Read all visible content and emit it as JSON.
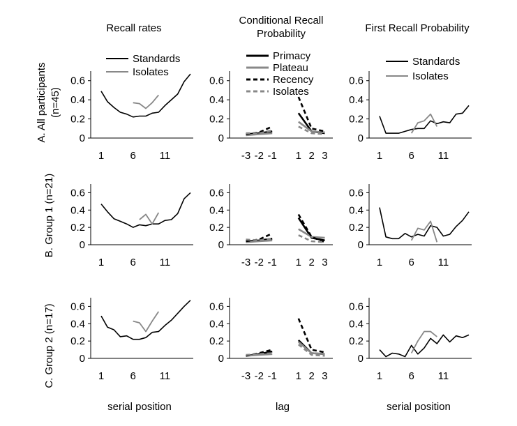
{
  "column_titles": [
    "Recall rates",
    "Conditional Recall\nProbability",
    "First Recall Probability"
  ],
  "row_labels": [
    "A. All participants (n=45)",
    "B. Group 1 (n=21)",
    "C. Group 2 (n=17)"
  ],
  "x_axis_labels": [
    "serial position",
    "lag",
    "serial position"
  ],
  "chart_data": [
    {
      "type": "line",
      "panel": "A-recall",
      "title": "Recall rates",
      "ylim": [
        0,
        0.7
      ],
      "yticks": [
        0,
        0.2,
        0.4,
        0.6
      ],
      "ytick_labels": [
        "0",
        "0.2",
        "0.4",
        "0.6"
      ],
      "xlim": [
        1,
        15
      ],
      "xticks": [
        1,
        6,
        11
      ],
      "xtick_labels": [
        "1",
        "6",
        "11"
      ],
      "legend": [
        "Standards",
        "Isolates"
      ],
      "series": [
        {
          "name": "Standards",
          "color": "#000000",
          "dash": "",
          "x": [
            1,
            2,
            3,
            4,
            5,
            6,
            7,
            8,
            9,
            10,
            11,
            12,
            13,
            14,
            15
          ],
          "y": [
            0.49,
            0.38,
            0.32,
            0.27,
            0.25,
            0.22,
            0.23,
            0.23,
            0.26,
            0.27,
            0.34,
            0.4,
            0.46,
            0.59,
            0.67
          ]
        },
        {
          "name": "Isolates",
          "color": "#888888",
          "dash": "",
          "x": [
            6,
            7,
            8,
            9,
            10
          ],
          "y": [
            0.37,
            0.36,
            0.31,
            0.37,
            0.45
          ]
        }
      ]
    },
    {
      "type": "line",
      "panel": "A-crp",
      "title": "Conditional Recall Probability",
      "ylim": [
        0,
        0.7
      ],
      "yticks": [
        0,
        0.2,
        0.4,
        0.6
      ],
      "ytick_labels": [
        "0",
        "0.2",
        "0.4",
        "0.6"
      ],
      "xlim": [
        -3.4,
        3.4
      ],
      "xticks": [
        -3,
        -2,
        -1,
        1,
        2,
        3
      ],
      "xtick_labels": [
        "-3",
        "-2",
        "-1",
        "1",
        "2",
        "3"
      ],
      "legend": [
        "Primacy",
        "Plateau",
        "Recency",
        "Isolates"
      ],
      "series": [
        {
          "name": "Primacy",
          "color": "#000000",
          "dash": "",
          "x": [
            -3,
            -2,
            -1,
            1,
            2,
            3
          ],
          "y": [
            0.04,
            0.05,
            0.07,
            0.26,
            0.07,
            0.05
          ]
        },
        {
          "name": "Plateau",
          "color": "#888888",
          "dash": "",
          "x": [
            -3,
            -2,
            -1,
            1,
            2,
            3
          ],
          "y": [
            0.03,
            0.04,
            0.05,
            0.17,
            0.07,
            0.06
          ]
        },
        {
          "name": "Recency",
          "color": "#000000",
          "dash": "6,4",
          "x": [
            -3,
            -2,
            -1,
            1,
            2,
            3
          ],
          "y": [
            0.04,
            0.06,
            0.12,
            0.43,
            0.1,
            0.07
          ]
        },
        {
          "name": "Isolates",
          "color": "#888888",
          "dash": "6,4",
          "x": [
            -3,
            -2,
            -1,
            1,
            2,
            3
          ],
          "y": [
            0.05,
            0.05,
            0.08,
            0.12,
            0.05,
            0.04
          ]
        }
      ]
    },
    {
      "type": "line",
      "panel": "A-first",
      "title": "First Recall Probability",
      "ylim": [
        0,
        0.7
      ],
      "yticks": [
        0,
        0.2,
        0.4,
        0.6
      ],
      "ytick_labels": [
        "0",
        "0.2",
        "0.4",
        "0.6"
      ],
      "xlim": [
        1,
        15
      ],
      "xticks": [
        1,
        6,
        11
      ],
      "xtick_labels": [
        "1",
        "6",
        "11"
      ],
      "legend": [
        "Standards",
        "Isolates"
      ],
      "series": [
        {
          "name": "Standards",
          "color": "#000000",
          "dash": "",
          "x": [
            1,
            2,
            3,
            4,
            5,
            6,
            7,
            8,
            9,
            10,
            11,
            12,
            13,
            14,
            15
          ],
          "y": [
            0.23,
            0.05,
            0.05,
            0.05,
            0.07,
            0.09,
            0.1,
            0.1,
            0.18,
            0.15,
            0.17,
            0.16,
            0.25,
            0.26,
            0.34
          ]
        },
        {
          "name": "Isolates",
          "color": "#888888",
          "dash": "",
          "x": [
            6,
            7,
            8,
            9,
            10
          ],
          "y": [
            0.05,
            0.16,
            0.18,
            0.25,
            0.12
          ]
        }
      ]
    },
    {
      "type": "line",
      "panel": "B-recall",
      "ylim": [
        0,
        0.7
      ],
      "yticks": [
        0,
        0.2,
        0.4,
        0.6
      ],
      "ytick_labels": [
        "0",
        "0.2",
        "0.4",
        "0.6"
      ],
      "xlim": [
        1,
        15
      ],
      "xticks": [
        1,
        6,
        11
      ],
      "xtick_labels": [
        "1",
        "6",
        "11"
      ],
      "series": [
        {
          "name": "Standards",
          "color": "#000000",
          "dash": "",
          "x": [
            1,
            2,
            3,
            4,
            5,
            6,
            7,
            8,
            9,
            10,
            11,
            12,
            13,
            14,
            15
          ],
          "y": [
            0.47,
            0.38,
            0.3,
            0.27,
            0.24,
            0.2,
            0.23,
            0.22,
            0.24,
            0.24,
            0.28,
            0.29,
            0.36,
            0.53,
            0.6
          ]
        },
        {
          "name": "Isolates",
          "color": "#888888",
          "dash": "",
          "x": [
            7,
            8,
            9,
            10
          ],
          "y": [
            0.29,
            0.35,
            0.24,
            0.37
          ]
        }
      ]
    },
    {
      "type": "line",
      "panel": "B-crp",
      "ylim": [
        0,
        0.7
      ],
      "yticks": [
        0,
        0.2,
        0.4,
        0.6
      ],
      "ytick_labels": [
        "0",
        "0.2",
        "0.4",
        "0.6"
      ],
      "xlim": [
        -3.4,
        3.4
      ],
      "xticks": [
        -3,
        -2,
        -1,
        1,
        2,
        3
      ],
      "xtick_labels": [
        "-3",
        "-2",
        "-1",
        "1",
        "2",
        "3"
      ],
      "series": [
        {
          "name": "Primacy",
          "color": "#000000",
          "dash": "",
          "x": [
            -3,
            -2,
            -1,
            1,
            2,
            3
          ],
          "y": [
            0.04,
            0.05,
            0.07,
            0.31,
            0.08,
            0.05
          ]
        },
        {
          "name": "Plateau",
          "color": "#888888",
          "dash": "",
          "x": [
            -3,
            -2,
            -1,
            1,
            2,
            3
          ],
          "y": [
            0.03,
            0.04,
            0.05,
            0.18,
            0.09,
            0.08
          ]
        },
        {
          "name": "Recency",
          "color": "#000000",
          "dash": "6,4",
          "x": [
            -3,
            -2,
            -1,
            1,
            2,
            3
          ],
          "y": [
            0.04,
            0.06,
            0.13,
            0.35,
            0.09,
            0.03
          ]
        },
        {
          "name": "Isolates",
          "color": "#888888",
          "dash": "6,4",
          "x": [
            -3,
            -2,
            -1,
            1,
            2,
            3
          ],
          "y": [
            0.06,
            0.05,
            0.07,
            0.11,
            0.04,
            0.03
          ]
        }
      ]
    },
    {
      "type": "line",
      "panel": "B-first",
      "ylim": [
        0,
        0.7
      ],
      "yticks": [
        0,
        0.2,
        0.4,
        0.6
      ],
      "ytick_labels": [
        "0",
        "0.2",
        "0.4",
        "0.6"
      ],
      "xlim": [
        1,
        15
      ],
      "xticks": [
        1,
        6,
        11
      ],
      "xtick_labels": [
        "1",
        "6",
        "11"
      ],
      "series": [
        {
          "name": "Standards",
          "color": "#000000",
          "dash": "",
          "x": [
            1,
            2,
            3,
            4,
            5,
            6,
            7,
            8,
            9,
            10,
            11,
            12,
            13,
            14,
            15
          ],
          "y": [
            0.43,
            0.09,
            0.07,
            0.07,
            0.13,
            0.09,
            0.12,
            0.1,
            0.22,
            0.2,
            0.1,
            0.12,
            0.21,
            0.28,
            0.38
          ]
        },
        {
          "name": "Isolates",
          "color": "#888888",
          "dash": "",
          "x": [
            6,
            7,
            8,
            9,
            10
          ],
          "y": [
            0.05,
            0.19,
            0.17,
            0.27,
            0.03
          ]
        }
      ]
    },
    {
      "type": "line",
      "panel": "C-recall",
      "ylim": [
        0,
        0.7
      ],
      "yticks": [
        0,
        0.2,
        0.4,
        0.6
      ],
      "ytick_labels": [
        "0",
        "0.2",
        "0.4",
        "0.6"
      ],
      "xlim": [
        1,
        15
      ],
      "xticks": [
        1,
        6,
        11
      ],
      "xtick_labels": [
        "1",
        "6",
        "11"
      ],
      "series": [
        {
          "name": "Standards",
          "color": "#000000",
          "dash": "",
          "x": [
            1,
            2,
            3,
            4,
            5,
            6,
            7,
            8,
            9,
            10,
            11,
            12,
            13,
            14,
            15
          ],
          "y": [
            0.49,
            0.36,
            0.33,
            0.25,
            0.26,
            0.22,
            0.22,
            0.24,
            0.3,
            0.31,
            0.38,
            0.44,
            0.52,
            0.6,
            0.67
          ]
        },
        {
          "name": "Isolates",
          "color": "#888888",
          "dash": "",
          "x": [
            6,
            7,
            8,
            9,
            10
          ],
          "y": [
            0.43,
            0.41,
            0.31,
            0.43,
            0.54
          ]
        }
      ]
    },
    {
      "type": "line",
      "panel": "C-crp",
      "ylim": [
        0,
        0.7
      ],
      "yticks": [
        0,
        0.2,
        0.4,
        0.6
      ],
      "ytick_labels": [
        "0",
        "0.2",
        "0.4",
        "0.6"
      ],
      "xlim": [
        -3.4,
        3.4
      ],
      "xticks": [
        -3,
        -2,
        -1,
        1,
        2,
        3
      ],
      "xtick_labels": [
        "-3",
        "-2",
        "-1",
        "1",
        "2",
        "3"
      ],
      "series": [
        {
          "name": "Primacy",
          "color": "#000000",
          "dash": "",
          "x": [
            -3,
            -2,
            -1,
            1,
            2,
            3
          ],
          "y": [
            0.03,
            0.05,
            0.08,
            0.21,
            0.06,
            0.05
          ]
        },
        {
          "name": "Plateau",
          "color": "#888888",
          "dash": "",
          "x": [
            -3,
            -2,
            -1,
            1,
            2,
            3
          ],
          "y": [
            0.03,
            0.04,
            0.05,
            0.19,
            0.06,
            0.05
          ]
        },
        {
          "name": "Recency",
          "color": "#000000",
          "dash": "6,4",
          "x": [
            -3,
            -2,
            -1,
            1,
            2,
            3
          ],
          "y": [
            0.03,
            0.06,
            0.1,
            0.46,
            0.1,
            0.07
          ]
        },
        {
          "name": "Isolates",
          "color": "#888888",
          "dash": "6,4",
          "x": [
            -3,
            -2,
            -1,
            1,
            2,
            3
          ],
          "y": [
            0.04,
            0.05,
            0.06,
            0.16,
            0.04,
            0.03
          ]
        }
      ]
    },
    {
      "type": "line",
      "panel": "C-first",
      "ylim": [
        0,
        0.7
      ],
      "yticks": [
        0,
        0.2,
        0.4,
        0.6
      ],
      "ytick_labels": [
        "0",
        "0.2",
        "0.4",
        "0.6"
      ],
      "xlim": [
        1,
        15
      ],
      "xticks": [
        1,
        6,
        11
      ],
      "xtick_labels": [
        "1",
        "6",
        "11"
      ],
      "series": [
        {
          "name": "Standards",
          "color": "#000000",
          "dash": "",
          "x": [
            1,
            2,
            3,
            4,
            5,
            6,
            7,
            8,
            9,
            10,
            11,
            12,
            13,
            14,
            15
          ],
          "y": [
            0.1,
            0.02,
            0.06,
            0.05,
            0.02,
            0.15,
            0.05,
            0.12,
            0.23,
            0.17,
            0.27,
            0.19,
            0.26,
            0.24,
            0.27
          ]
        },
        {
          "name": "Isolates",
          "color": "#888888",
          "dash": "",
          "x": [
            6,
            7,
            8,
            9,
            10
          ],
          "y": [
            0.06,
            0.2,
            0.31,
            0.31,
            0.25
          ]
        }
      ]
    }
  ]
}
